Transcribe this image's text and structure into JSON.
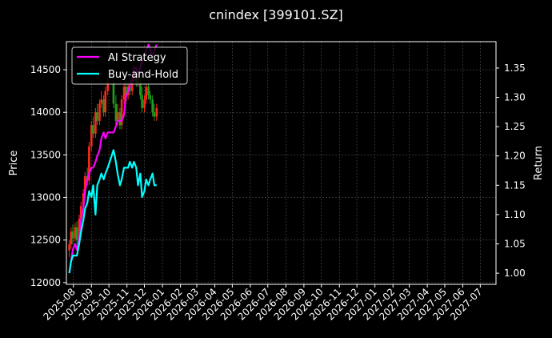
{
  "chart_data": {
    "type": "line",
    "title": "cnindex [399101.SZ]",
    "ylabel_left": "Price",
    "ylabel_right": "Return",
    "legend_position": "upper-left",
    "grid": true,
    "background": "#000000",
    "colors": {
      "ai_strategy": "#ff00ff",
      "buy_and_hold": "#00ffff",
      "candle_up": "#ff2a1a",
      "candle_down": "#1f9e1f",
      "grid": "#555555"
    },
    "x_ticks": [
      "2025-08",
      "2025-09",
      "2025-10",
      "2025-11",
      "2025-12",
      "2026-01",
      "2026-02",
      "2026-03",
      "2026-04",
      "2026-05",
      "2026-06",
      "2026-07",
      "2026-08",
      "2026-09",
      "2026-10",
      "2026-11",
      "2026-12",
      "2027-01",
      "2027-02",
      "2027-03",
      "2027-04",
      "2027-05",
      "2027-06",
      "2027-07"
    ],
    "xlim": [
      "2025-07-20",
      "2027-07-28"
    ],
    "y_left_ticks": [
      12000,
      12500,
      13000,
      13500,
      14000,
      14500
    ],
    "y_left_lim": [
      11980,
      14830
    ],
    "y_right_ticks": [
      1.0,
      1.05,
      1.1,
      1.15,
      1.2,
      1.25,
      1.3,
      1.35
    ],
    "y_right_lim": [
      0.981,
      1.395
    ],
    "tick_labels_right": [
      "1.00",
      "1.05",
      "1.10",
      "1.15",
      "1.20",
      "1.25",
      "1.30",
      "1.35"
    ],
    "series": [
      {
        "name": "AI Strategy",
        "axis": "right",
        "x": [
          "2025-07-25",
          "2025-07-28",
          "2025-07-31",
          "2025-08-04",
          "2025-08-07",
          "2025-08-11",
          "2025-08-14",
          "2025-08-18",
          "2025-08-21",
          "2025-08-25",
          "2025-08-28",
          "2025-09-01",
          "2025-09-04",
          "2025-09-08",
          "2025-09-11",
          "2025-09-15",
          "2025-09-18",
          "2025-09-22",
          "2025-09-25",
          "2025-09-29",
          "2025-10-09",
          "2025-10-13",
          "2025-10-16",
          "2025-10-20",
          "2025-10-23",
          "2025-10-27",
          "2025-10-30",
          "2025-11-03",
          "2025-11-06",
          "2025-11-10",
          "2025-11-13",
          "2025-11-17",
          "2025-11-20",
          "2025-11-24",
          "2025-11-27",
          "2025-12-01",
          "2025-12-04",
          "2025-12-08",
          "2025-12-11",
          "2025-12-15",
          "2025-12-18",
          "2025-12-22"
        ],
        "y": [
          1.0,
          1.02,
          1.04,
          1.05,
          1.04,
          1.06,
          1.09,
          1.11,
          1.14,
          1.16,
          1.17,
          1.18,
          1.18,
          1.19,
          1.2,
          1.21,
          1.23,
          1.24,
          1.23,
          1.24,
          1.24,
          1.25,
          1.26,
          1.26,
          1.26,
          1.27,
          1.3,
          1.31,
          1.32,
          1.33,
          1.35,
          1.35,
          1.34,
          1.35,
          1.36,
          1.37,
          1.38,
          1.39,
          1.38,
          1.37,
          1.38,
          1.39
        ]
      },
      {
        "name": "Buy-and-Hold",
        "axis": "right",
        "x": [
          "2025-07-25",
          "2025-07-28",
          "2025-07-31",
          "2025-08-04",
          "2025-08-07",
          "2025-08-11",
          "2025-08-14",
          "2025-08-18",
          "2025-08-21",
          "2025-08-25",
          "2025-08-28",
          "2025-09-01",
          "2025-09-04",
          "2025-09-08",
          "2025-09-11",
          "2025-09-15",
          "2025-09-18",
          "2025-09-22",
          "2025-09-25",
          "2025-09-29",
          "2025-10-09",
          "2025-10-13",
          "2025-10-16",
          "2025-10-20",
          "2025-10-23",
          "2025-10-27",
          "2025-10-30",
          "2025-11-03",
          "2025-11-06",
          "2025-11-10",
          "2025-11-13",
          "2025-11-17",
          "2025-11-20",
          "2025-11-24",
          "2025-11-27",
          "2025-12-01",
          "2025-12-04",
          "2025-12-08",
          "2025-12-11",
          "2025-12-15",
          "2025-12-18",
          "2025-12-22"
        ],
        "y": [
          1.0,
          1.02,
          1.03,
          1.03,
          1.03,
          1.05,
          1.07,
          1.09,
          1.11,
          1.12,
          1.14,
          1.13,
          1.15,
          1.1,
          1.15,
          1.16,
          1.17,
          1.16,
          1.17,
          1.18,
          1.21,
          1.19,
          1.17,
          1.15,
          1.16,
          1.18,
          1.18,
          1.18,
          1.19,
          1.18,
          1.19,
          1.18,
          1.15,
          1.17,
          1.13,
          1.14,
          1.16,
          1.15,
          1.16,
          1.17,
          1.15,
          1.15
        ]
      }
    ],
    "candles": {
      "axis": "left",
      "dates": [
        "2025-07-25",
        "2025-07-28",
        "2025-07-31",
        "2025-08-04",
        "2025-08-07",
        "2025-08-11",
        "2025-08-14",
        "2025-08-18",
        "2025-08-21",
        "2025-08-25",
        "2025-08-28",
        "2025-09-01",
        "2025-09-04",
        "2025-09-08",
        "2025-09-11",
        "2025-09-15",
        "2025-09-18",
        "2025-09-22",
        "2025-09-25",
        "2025-09-29",
        "2025-10-09",
        "2025-10-13",
        "2025-10-16",
        "2025-10-20",
        "2025-10-23",
        "2025-10-27",
        "2025-10-30",
        "2025-11-03",
        "2025-11-06",
        "2025-11-10",
        "2025-11-13",
        "2025-11-17",
        "2025-11-20",
        "2025-11-24",
        "2025-11-27",
        "2025-12-01",
        "2025-12-04",
        "2025-12-08",
        "2025-12-11",
        "2025-12-15",
        "2025-12-18",
        "2025-12-22"
      ],
      "open": [
        12380,
        12450,
        12600,
        12520,
        12650,
        12500,
        12750,
        12900,
        13050,
        13250,
        13200,
        13600,
        13850,
        13750,
        14000,
        13900,
        14100,
        14150,
        14000,
        14250,
        14350,
        14100,
        13900,
        14000,
        13850,
        14150,
        14300,
        14200,
        14300,
        14250,
        14400,
        14450,
        14350,
        14350,
        14200,
        14050,
        14150,
        14300,
        14200,
        14150,
        14000,
        13950
      ],
      "close": [
        12450,
        12600,
        12520,
        12650,
        12500,
        12750,
        12900,
        13050,
        13250,
        13200,
        13600,
        13850,
        13750,
        14000,
        13900,
        14100,
        14150,
        14000,
        14250,
        14350,
        14100,
        13900,
        14000,
        13850,
        14150,
        14300,
        14200,
        14300,
        14250,
        14400,
        14450,
        14350,
        14350,
        14200,
        14050,
        14150,
        14300,
        14200,
        14150,
        14000,
        13950,
        14050
      ],
      "high": [
        12500,
        12650,
        12680,
        12700,
        12720,
        12800,
        12950,
        13100,
        13300,
        13350,
        13650,
        13900,
        13950,
        14050,
        14100,
        14150,
        14250,
        14200,
        14300,
        14400,
        14450,
        14200,
        14100,
        14050,
        14200,
        14350,
        14400,
        14350,
        14400,
        14450,
        14550,
        14500,
        14450,
        14400,
        14300,
        14200,
        14350,
        14350,
        14250,
        14200,
        14100,
        14100
      ],
      "low": [
        12300,
        12400,
        12450,
        12480,
        12450,
        12450,
        12700,
        12850,
        13000,
        13150,
        13150,
        13550,
        13700,
        13700,
        13850,
        13850,
        14050,
        13950,
        13950,
        14200,
        14050,
        13850,
        13850,
        13800,
        13800,
        14100,
        14150,
        14150,
        14200,
        14200,
        14350,
        14300,
        14300,
        14150,
        14000,
        14000,
        14100,
        14150,
        14100,
        13950,
        13900,
        13900
      ]
    }
  }
}
